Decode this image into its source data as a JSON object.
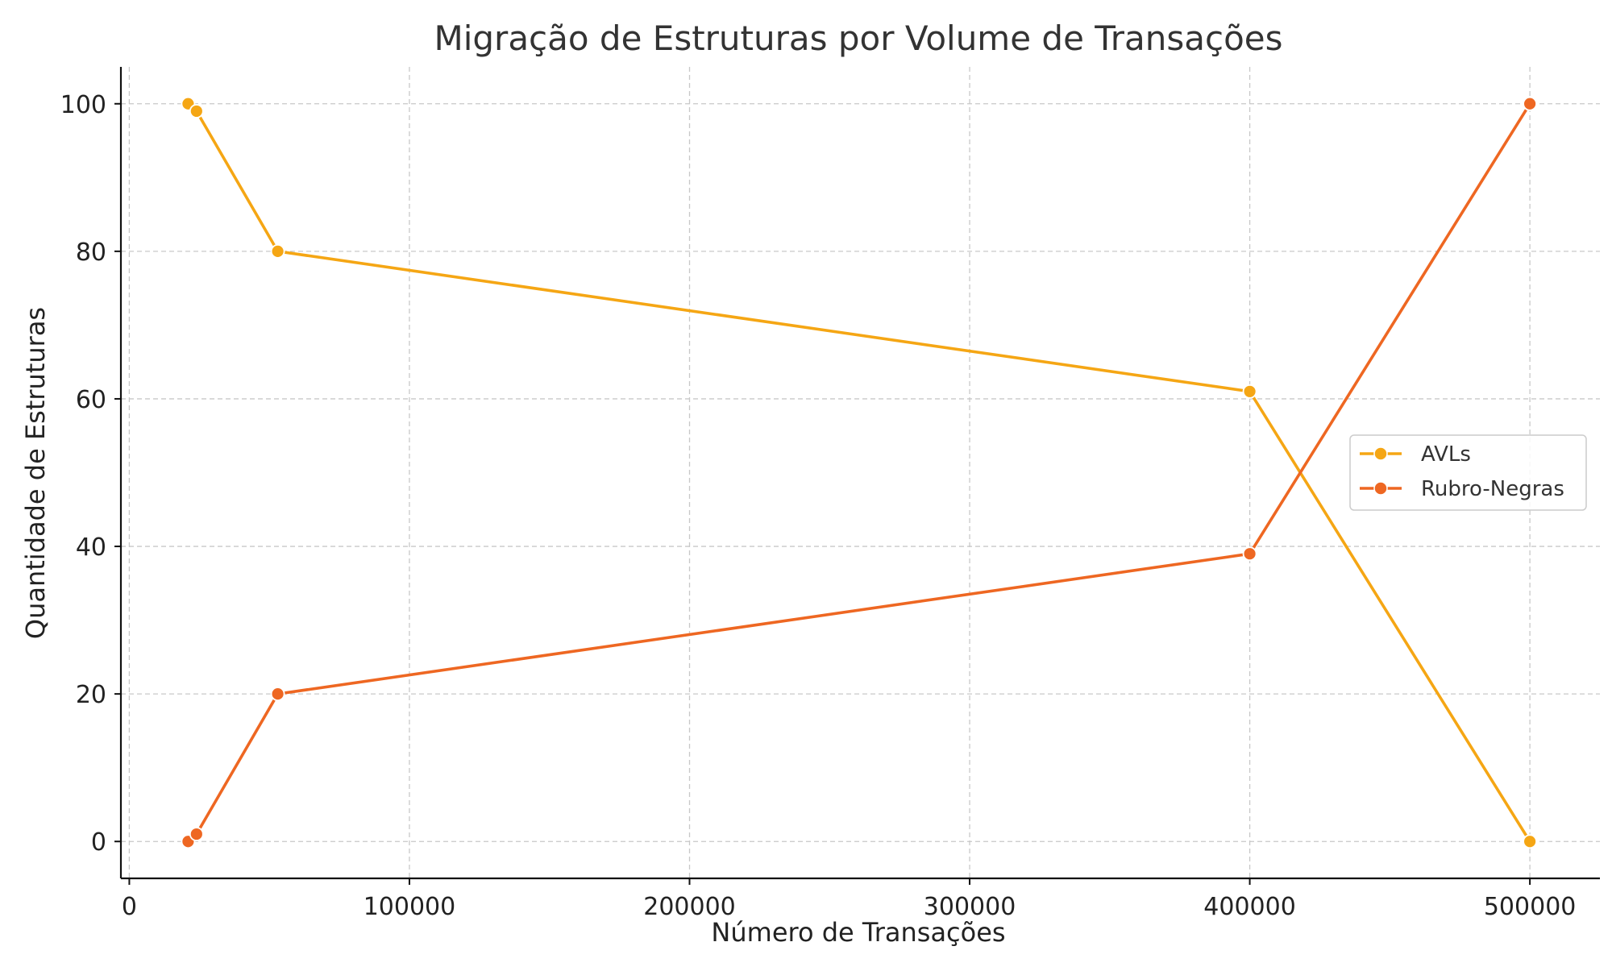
{
  "chart_data": {
    "type": "line",
    "title": "Migração de Estruturas por Volume de Transações",
    "xlabel": "Número de Transações",
    "ylabel": "Quantidade de Estruturas",
    "xlim": [
      -3000,
      525000
    ],
    "ylim": [
      -5,
      105
    ],
    "xticks": [
      0,
      100000,
      200000,
      300000,
      400000,
      500000
    ],
    "yticks": [
      0,
      20,
      40,
      60,
      80,
      100
    ],
    "grid": true,
    "legend_position": "center-right",
    "series": [
      {
        "name": "AVLs",
        "color": "#F5A614",
        "x": [
          21000,
          24000,
          53000,
          400000,
          500000
        ],
        "y": [
          100,
          99,
          80,
          61,
          0
        ]
      },
      {
        "name": "Rubro-Negras",
        "color": "#EE6722",
        "x": [
          21000,
          24000,
          53000,
          400000,
          500000
        ],
        "y": [
          0,
          1,
          20,
          39,
          100
        ]
      }
    ]
  }
}
